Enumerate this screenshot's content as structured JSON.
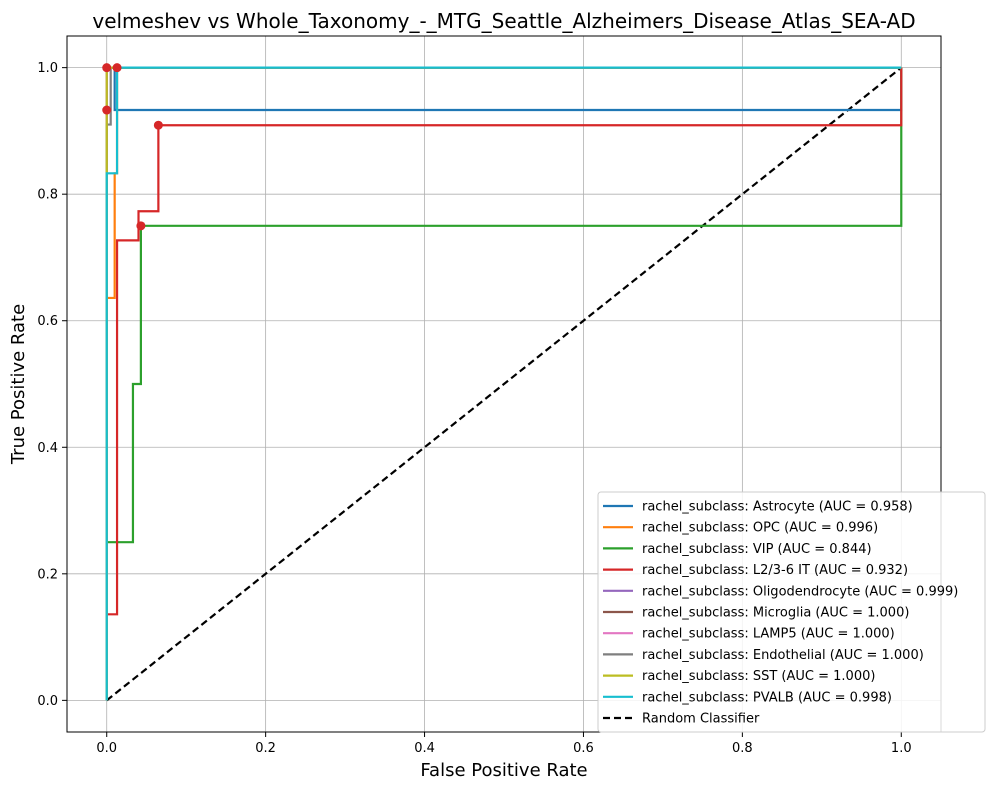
{
  "chart_data": {
    "type": "line",
    "title": "velmeshev vs Whole_Taxonomy_-_MTG_Seattle_Alzheimers_Disease_Atlas_SEA-AD",
    "xlabel": "False Positive Rate",
    "ylabel": "True Positive Rate",
    "xlim": [
      -0.05,
      1.05
    ],
    "ylim": [
      -0.05,
      1.05
    ],
    "xticks": [
      "0.0",
      "0.2",
      "0.4",
      "0.6",
      "0.8",
      "1.0"
    ],
    "yticks": [
      "0.0",
      "0.2",
      "0.4",
      "0.6",
      "0.8",
      "1.0"
    ],
    "grid": true,
    "legend_position": "lower-right",
    "series": [
      {
        "name": "rachel_subclass: Astrocyte (AUC = 0.958)",
        "color": "#1f77b4",
        "x": [
          0,
          0,
          0,
          0.01,
          0.01,
          1.0,
          1.0
        ],
        "y": [
          0,
          0.933,
          1.0,
          1.0,
          0.933,
          0.933,
          1.0
        ]
      },
      {
        "name": "rachel_subclass: OPC (AUC = 0.996)",
        "color": "#ff7f0e",
        "x": [
          0,
          0,
          0.01,
          0.01,
          0.013,
          0.013,
          1.0
        ],
        "y": [
          0,
          0.636,
          0.636,
          0.833,
          0.833,
          1.0,
          1.0
        ]
      },
      {
        "name": "rachel_subclass: VIP (AUC = 0.844)",
        "color": "#2ca02c",
        "x": [
          0,
          0,
          0.033,
          0.033,
          0.043,
          0.043,
          1.0,
          1.0
        ],
        "y": [
          0,
          0.25,
          0.25,
          0.5,
          0.5,
          0.75,
          0.75,
          1.0
        ]
      },
      {
        "name": "rachel_subclass: L2/3-6 IT (AUC = 0.932)",
        "color": "#d62728",
        "x": [
          0,
          0.013,
          0.013,
          0.04,
          0.04,
          0.065,
          0.065,
          1.0,
          1.0
        ],
        "y": [
          0.136,
          0.136,
          0.727,
          0.727,
          0.773,
          0.773,
          0.909,
          0.909,
          1.0
        ]
      },
      {
        "name": "rachel_subclass: Oligodendrocyte (AUC = 0.999)",
        "color": "#9467bd",
        "x": [
          0,
          0,
          0.002,
          1.0
        ],
        "y": [
          0,
          1.0,
          1.0,
          1.0
        ]
      },
      {
        "name": "rachel_subclass: Microglia (AUC = 1.000)",
        "color": "#8c564b",
        "x": [
          0,
          0,
          1.0
        ],
        "y": [
          0,
          1.0,
          1.0
        ]
      },
      {
        "name": "rachel_subclass: LAMP5 (AUC = 1.000)",
        "color": "#e377c2",
        "x": [
          0,
          0,
          1.0
        ],
        "y": [
          0,
          1.0,
          1.0
        ]
      },
      {
        "name": "rachel_subclass: Endothelial (AUC = 1.000)",
        "color": "#7f7f7f",
        "x": [
          0,
          0,
          0.005,
          0.005,
          1.0
        ],
        "y": [
          0,
          0.91,
          0.91,
          1.0,
          1.0
        ]
      },
      {
        "name": "rachel_subclass: SST (AUC = 1.000)",
        "color": "#bcbd22",
        "x": [
          0,
          0,
          1.0
        ],
        "y": [
          0,
          1.0,
          1.0
        ]
      },
      {
        "name": "rachel_subclass: PVALB (AUC = 0.998)",
        "color": "#17becf",
        "x": [
          0,
          0,
          0.013,
          0.013,
          1.0
        ],
        "y": [
          0,
          0.833,
          0.833,
          1.0,
          1.0
        ]
      }
    ],
    "reference_line": {
      "name": "Random Classifier",
      "color": "#000000",
      "style": "dashed",
      "x": [
        0,
        1
      ],
      "y": [
        0,
        1
      ]
    },
    "threshold_points": {
      "color": "#d62728",
      "x": [
        0,
        0,
        0.013,
        0.043,
        0.065
      ],
      "y": [
        0.933,
        1.0,
        1.0,
        0.75,
        0.909
      ]
    }
  }
}
